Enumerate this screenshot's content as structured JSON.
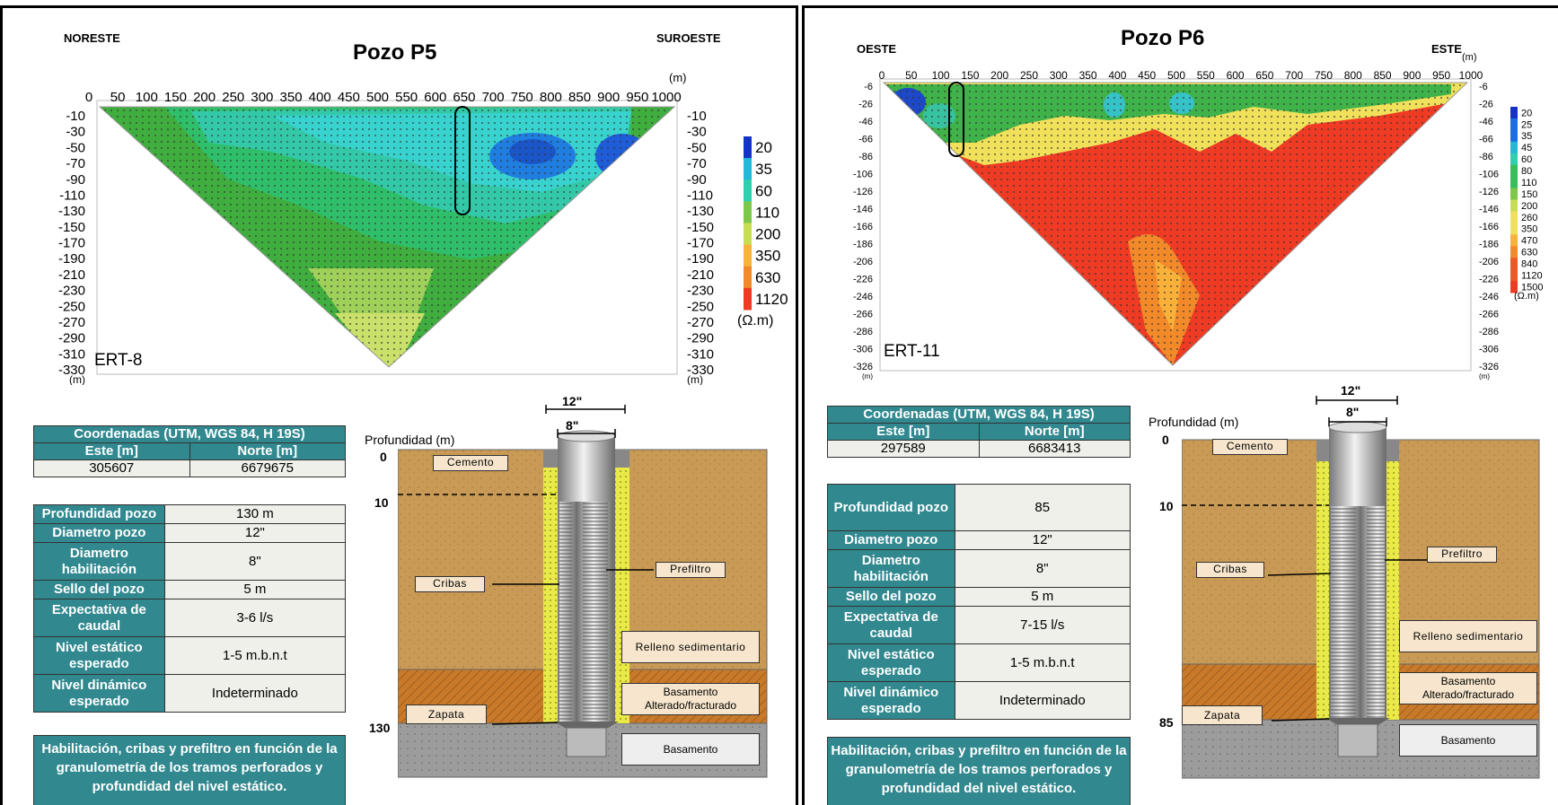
{
  "p5": {
    "title": "Pozo P5",
    "dir_left": "NORESTE",
    "dir_right": "SUROESTE",
    "unit_m": "(m)",
    "x_ticks": [
      "0",
      "50",
      "100",
      "150",
      "200",
      "250",
      "300",
      "350",
      "400",
      "450",
      "500",
      "550",
      "600",
      "650",
      "700",
      "750",
      "800",
      "850",
      "900",
      "950",
      "1000"
    ],
    "y_ticks": [
      "-10",
      "-30",
      "-50",
      "-70",
      "-90",
      "-110",
      "-130",
      "-150",
      "-170",
      "-190",
      "-210",
      "-230",
      "-250",
      "-270",
      "-290",
      "-310",
      "-330"
    ],
    "y_unit": "(m)",
    "section_label": "ERT-8",
    "legend_values": [
      "20",
      "35",
      "60",
      "110",
      "200",
      "350",
      "630",
      "1120"
    ],
    "legend_unit": "(Ω.m)",
    "coords_header": "Coordenadas (UTM, WGS 84, H 19S)",
    "coords_cols": [
      "Este [m]",
      "Norte [m]"
    ],
    "coords_vals": [
      "305607",
      "6679675"
    ],
    "params": [
      {
        "label": "Profundidad pozo",
        "value": "130 m"
      },
      {
        "label": "Diametro pozo",
        "value": "12\""
      },
      {
        "label": "Diametro habilitación",
        "value": "8\""
      },
      {
        "label": "Sello del pozo",
        "value": "5 m"
      },
      {
        "label": "Expectativa de caudal",
        "value": "3-6 l/s"
      },
      {
        "label": "Nivel estático esperado",
        "value": "1-5 m.b.n.t"
      },
      {
        "label": "Nivel dinámico esperado",
        "value": "Indeterminado"
      }
    ],
    "note": "Habilitación, cribas y prefiltro en función de la granulometría de los tramos perforados y profundidad del nivel estático.",
    "well": {
      "prof_title": "Profundidad (m)",
      "depth_top": "0",
      "depth_mid": "10",
      "depth_bottom": "130",
      "dia_outer": "12\"",
      "dia_inner": "8\"",
      "cemento": "Cemento",
      "cribas": "Cribas",
      "prefiltro": "Prefiltro",
      "zapata": "Zapata",
      "relleno": "Relleno sedimentario",
      "basamento_alt_1": "Basamento",
      "basamento_alt_2": "Alterado/fracturado",
      "basamento": "Basamento"
    }
  },
  "p6": {
    "title": "Pozo P6",
    "dir_left": "OESTE",
    "dir_right": "ESTE",
    "unit_m": "(m)",
    "x_ticks": [
      "0",
      "50",
      "100",
      "150",
      "200",
      "250",
      "300",
      "350",
      "400",
      "450",
      "500",
      "550",
      "600",
      "650",
      "700",
      "750",
      "800",
      "850",
      "900",
      "950",
      "1000"
    ],
    "y_ticks": [
      "-6",
      "-26",
      "-46",
      "-66",
      "-86",
      "-106",
      "-126",
      "-146",
      "-166",
      "-186",
      "-206",
      "-226",
      "-246",
      "-266",
      "-286",
      "-306",
      "-326"
    ],
    "y_unit": "(m)",
    "section_label": "ERT-11",
    "legend_values": [
      "20",
      "25",
      "35",
      "45",
      "60",
      "80",
      "110",
      "150",
      "200",
      "260",
      "350",
      "470",
      "630",
      "840",
      "1120",
      "1500"
    ],
    "legend_unit": "(Ω.m)",
    "coords_header": "Coordenadas (UTM, WGS 84, H 19S)",
    "coords_cols": [
      "Este [m]",
      "Norte [m]"
    ],
    "coords_vals": [
      "297589",
      "6683413"
    ],
    "params": [
      {
        "label": "Profundidad pozo",
        "value": "85"
      },
      {
        "label": "Diametro pozo",
        "value": "12\""
      },
      {
        "label": "Diametro habilitación",
        "value": "8\""
      },
      {
        "label": "Sello del pozo",
        "value": "5 m"
      },
      {
        "label": "Expectativa de caudal",
        "value": "7-15 l/s"
      },
      {
        "label": "Nivel estático esperado",
        "value": "1-5 m.b.n.t"
      },
      {
        "label": "Nivel dinámico esperado",
        "value": "Indeterminado"
      }
    ],
    "note": "Habilitación, cribas y prefiltro en función de la granulometría de los tramos perforados y profundidad del nivel estático.",
    "well": {
      "prof_title": "Profundidad (m)",
      "depth_top": "0",
      "depth_mid": "10",
      "depth_bottom": "85",
      "dia_outer": "12\"",
      "dia_inner": "8\"",
      "cemento": "Cemento",
      "cribas": "Cribas",
      "prefiltro": "Prefiltro",
      "zapata": "Zapata",
      "relleno": "Relleno sedimentario",
      "basamento_alt_1": "Basamento",
      "basamento_alt_2": "Alterado/fracturado",
      "basamento": "Basamento"
    }
  },
  "colors": {
    "teal": "#31888f",
    "sand": "#c99a55",
    "orange_layer": "#c87a2a",
    "gravel": "#ffff66",
    "grey_base": "#9c9c9c"
  }
}
